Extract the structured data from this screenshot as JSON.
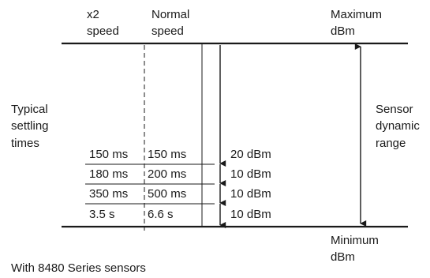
{
  "header": {
    "x2_speed": [
      "x2",
      "speed"
    ],
    "normal_speed": [
      "Normal",
      "speed"
    ],
    "maximum": [
      "Maximum",
      "dBm"
    ]
  },
  "left_label": [
    "Typical",
    "settling",
    "times"
  ],
  "right_label": [
    "Sensor",
    "dynamic",
    "range"
  ],
  "rows": [
    {
      "x2": "150 ms",
      "normal": "150 ms",
      "range": "20 dBm"
    },
    {
      "x2": "180 ms",
      "normal": "200 ms",
      "range": "10 dBm"
    },
    {
      "x2": "350 ms",
      "normal": "500 ms",
      "range": "10 dBm"
    },
    {
      "x2": "3.5 s",
      "normal": "6.6 s",
      "range": "10 dBm"
    }
  ],
  "minimum": [
    "Minimum",
    "dBm"
  ],
  "footnote": "With 8480 Series sensors"
}
